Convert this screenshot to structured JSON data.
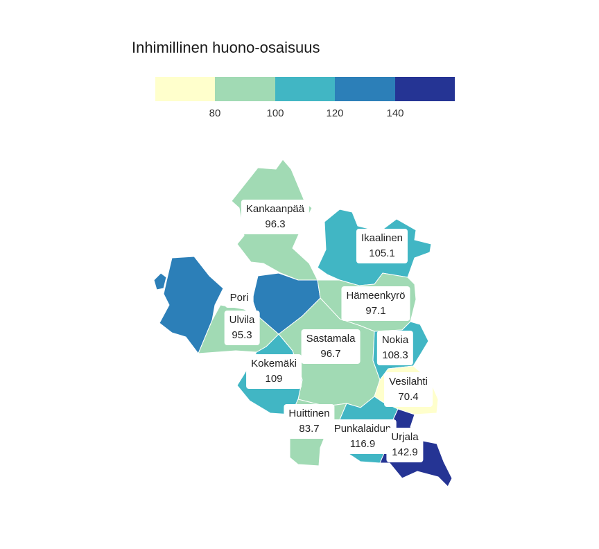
{
  "title": "Inhimillinen huono-osaisuus",
  "legend": {
    "colors": [
      "#ffffcc",
      "#a1dab4",
      "#41b6c4",
      "#2c7fb8",
      "#253494"
    ],
    "ticks": [
      "80",
      "100",
      "120",
      "140"
    ]
  },
  "municipalities": [
    {
      "name": "Kankaanpää",
      "value": "96.3",
      "color": "#a1dab4"
    },
    {
      "name": "Ikaalinen",
      "value": "105.1",
      "color": "#41b6c4"
    },
    {
      "name": "Pori",
      "value": "",
      "color": "#2c7fb8"
    },
    {
      "name": "Hämeenkyrö",
      "value": "97.1",
      "color": "#a1dab4"
    },
    {
      "name": "Ulvila",
      "value": "95.3",
      "color": "#a1dab4"
    },
    {
      "name": "Sastamala",
      "value": "96.7",
      "color": "#a1dab4"
    },
    {
      "name": "Nokia",
      "value": "108.3",
      "color": "#41b6c4"
    },
    {
      "name": "Kokemäki",
      "value": "109",
      "color": "#41b6c4"
    },
    {
      "name": "Vesilahti",
      "value": "70.4",
      "color": "#ffffcc"
    },
    {
      "name": "Huittinen",
      "value": "83.7",
      "color": "#a1dab4"
    },
    {
      "name": "Punkalaidun",
      "value": "116.9",
      "color": "#41b6c4"
    },
    {
      "name": "Urjala",
      "value": "142.9",
      "color": "#253494"
    }
  ]
}
